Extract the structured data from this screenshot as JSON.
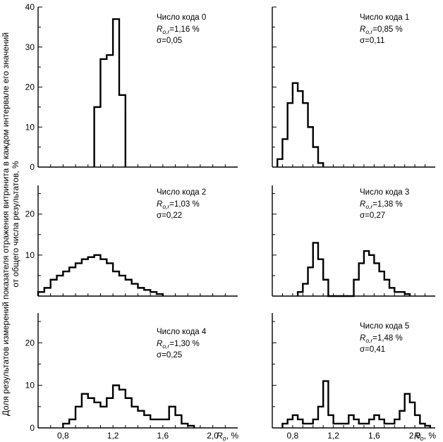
{
  "y_axis_title_line1": "Доля результатов измерений показателя отражения витринита в каждом интервале его значений",
  "y_axis_title_line2": "от общего числа результатов, %",
  "x_axis_unit": ", %",
  "x_axis_symbol": "R",
  "x_axis_subscript": "o",
  "chart_data": [
    {
      "type": "histogram",
      "panel": "top-left",
      "label": "Число кода 0",
      "mean_prefix": "R",
      "mean_sub": "o,r",
      "mean_value": "=1,16 %",
      "sigma": "σ=0,05",
      "ylim": [
        0,
        40
      ],
      "yticks": [
        "0",
        "10",
        "20",
        "30",
        "40"
      ],
      "xlim": [
        0.6,
        2.2
      ],
      "bin_width": 0.05,
      "bins_start": [
        1.05,
        1.1,
        1.15,
        1.2,
        1.25
      ],
      "values": [
        15,
        27,
        28,
        37,
        18
      ]
    },
    {
      "type": "histogram",
      "panel": "top-right",
      "label": "Число кода 1",
      "mean_prefix": "R",
      "mean_sub": "o,r",
      "mean_value": "=0,85 %",
      "sigma": "σ=0,11",
      "ylim": [
        0,
        40
      ],
      "xlim": [
        0.6,
        2.2
      ],
      "bin_width": 0.05,
      "bins_start": [
        0.65,
        0.7,
        0.75,
        0.8,
        0.85,
        0.9,
        0.95,
        1.0,
        1.05
      ],
      "values": [
        2,
        7,
        16,
        21,
        19,
        16,
        10,
        5,
        1
      ]
    },
    {
      "type": "histogram",
      "panel": "middle-left",
      "label": "Число кода 2",
      "mean_prefix": "R",
      "mean_sub": "o,r",
      "mean_value": "=1,03 %",
      "sigma": "σ=0,22",
      "ylim": [
        0,
        27
      ],
      "yticks": [
        "10",
        "20"
      ],
      "xlim": [
        0.6,
        2.2
      ],
      "bin_width": 0.05,
      "bins_start": [
        0.6,
        0.65,
        0.7,
        0.75,
        0.8,
        0.85,
        0.9,
        0.95,
        1.0,
        1.05,
        1.1,
        1.15,
        1.2,
        1.25,
        1.3,
        1.35,
        1.4,
        1.45,
        1.5,
        1.55
      ],
      "values": [
        1,
        2,
        4,
        5,
        6,
        7,
        8,
        9,
        9.5,
        10,
        9,
        8,
        6,
        5,
        4,
        3,
        2,
        1.5,
        1,
        0.5
      ]
    },
    {
      "type": "histogram",
      "panel": "middle-right",
      "label": "Число кода 3",
      "mean_prefix": "R",
      "mean_sub": "o,r",
      "mean_value": "=1,38 %",
      "sigma": "σ=0,27",
      "ylim": [
        0,
        27
      ],
      "xlim": [
        0.6,
        2.2
      ],
      "bin_width": 0.05,
      "bins_start": [
        0.85,
        0.9,
        0.95,
        1.0,
        1.05,
        1.1,
        1.15,
        1.2,
        1.25,
        1.3,
        1.35,
        1.4,
        1.45,
        1.5,
        1.55,
        1.6,
        1.65,
        1.7,
        1.75,
        1.8,
        1.85,
        1.9
      ],
      "values": [
        1,
        3,
        7,
        13,
        9,
        4,
        0,
        0,
        0,
        0,
        0,
        4,
        8,
        11,
        10,
        8,
        6,
        4,
        2,
        1,
        1,
        0.5
      ]
    },
    {
      "type": "histogram",
      "panel": "bottom-left",
      "label": "Число кода 4",
      "mean_prefix": "R",
      "mean_sub": "o,r",
      "mean_value": "=1,30 %",
      "sigma": "σ=0,25",
      "ylim": [
        0,
        27
      ],
      "yticks": [
        "0",
        "10",
        "20"
      ],
      "xlim": [
        0.6,
        2.2
      ],
      "xticks": [
        "0,8",
        "1,2",
        "1,6",
        "2,0"
      ],
      "bin_width": 0.05,
      "bins_start": [
        0.8,
        0.85,
        0.9,
        0.95,
        1.0,
        1.05,
        1.1,
        1.15,
        1.2,
        1.25,
        1.3,
        1.35,
        1.4,
        1.45,
        1.5,
        1.55,
        1.6,
        1.65,
        1.7,
        1.75,
        1.8
      ],
      "values": [
        1,
        2,
        5,
        8,
        7,
        6,
        5,
        7,
        10,
        9,
        7,
        5,
        4,
        3,
        2,
        2,
        2,
        5,
        3,
        1,
        0.5
      ]
    },
    {
      "type": "histogram",
      "panel": "bottom-right",
      "label": "Число кода 5",
      "mean_prefix": "R",
      "mean_sub": "o,r",
      "mean_value": "=1,48 %",
      "sigma": "σ=0,41",
      "ylim": [
        0,
        27
      ],
      "xlim": [
        0.6,
        2.2
      ],
      "xticks": [
        "0,8",
        "1,2",
        "1,6",
        "2,0"
      ],
      "bin_width": 0.05,
      "bins_start": [
        0.7,
        0.75,
        0.8,
        0.85,
        0.9,
        0.95,
        1.0,
        1.05,
        1.1,
        1.15,
        1.2,
        1.25,
        1.3,
        1.35,
        1.4,
        1.45,
        1.5,
        1.55,
        1.6,
        1.65,
        1.7,
        1.75,
        1.8,
        1.85,
        1.9,
        1.95,
        2.0,
        2.05,
        2.1
      ],
      "values": [
        1,
        2,
        3,
        2,
        1,
        1,
        2,
        5,
        11,
        3,
        1,
        1,
        1,
        3,
        2,
        1,
        1,
        2,
        3,
        2,
        1,
        1,
        2,
        4,
        8,
        6,
        3,
        1,
        0.5
      ]
    }
  ]
}
